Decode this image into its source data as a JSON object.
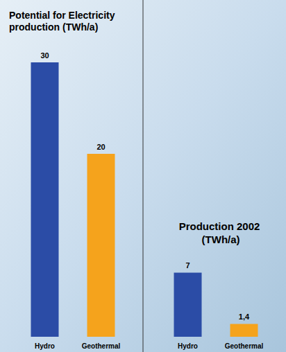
{
  "chart_data": [
    {
      "type": "bar",
      "title": "Potential for Electricity production (TWh/a)",
      "categories": [
        "Hydro",
        "Geothermal"
      ],
      "values": [
        30,
        20
      ],
      "colors": [
        "#2b4ca6",
        "#f5a31c"
      ],
      "ylim": [
        0,
        30
      ],
      "data_labels": true,
      "tick_labels": "x",
      "grid": false
    },
    {
      "type": "bar",
      "title": "Production 2002 (TWh/a)",
      "categories": [
        "Hydro",
        "Geothermal"
      ],
      "values": [
        7,
        1.4
      ],
      "value_labels": [
        "7",
        "1,4"
      ],
      "colors": [
        "#2b4ca6",
        "#f5a31c"
      ],
      "ylim": [
        0,
        30
      ],
      "data_labels": true,
      "tick_labels": "x",
      "grid": false
    }
  ]
}
